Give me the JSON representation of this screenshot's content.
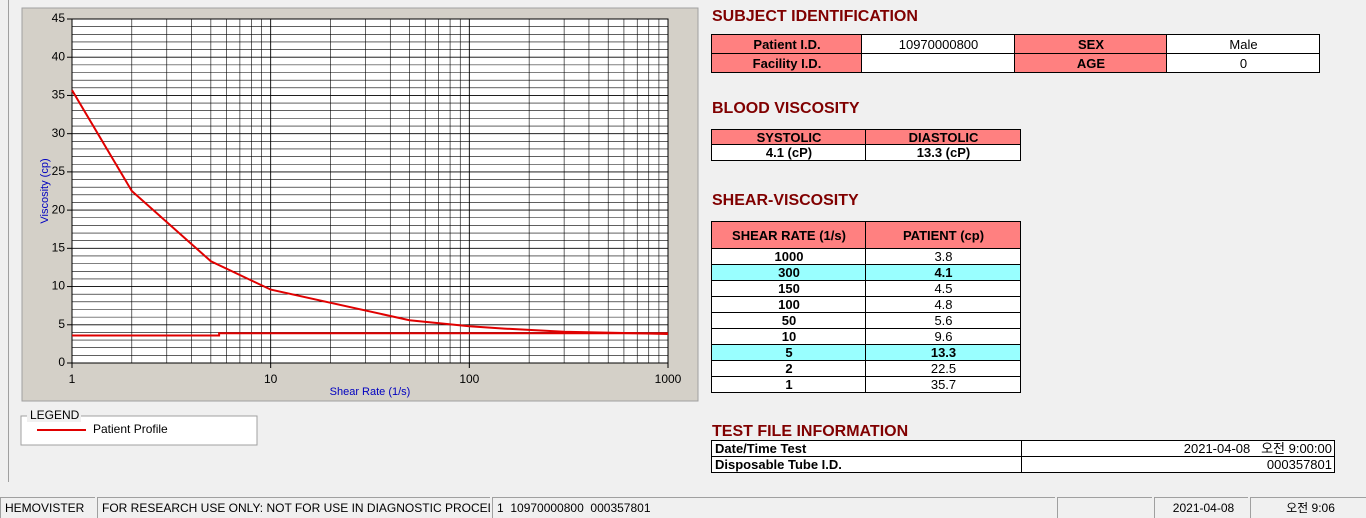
{
  "chart_data": {
    "type": "line",
    "xlabel": "Shear Rate (1/s)",
    "ylabel": "Viscosity (cp)",
    "xscale": "log",
    "xlim": [
      1,
      1000
    ],
    "xticks": [
      1,
      10,
      100,
      1000
    ],
    "xminor": [
      2,
      3,
      4,
      5,
      6,
      7,
      8,
      9,
      20,
      30,
      40,
      50,
      60,
      70,
      80,
      90,
      200,
      300,
      400,
      500,
      600,
      700,
      800,
      900
    ],
    "ylim": [
      0,
      45
    ],
    "yticks": [
      0,
      5,
      10,
      15,
      20,
      25,
      30,
      35,
      40,
      45
    ],
    "yminor": [
      1,
      2,
      3,
      4,
      6,
      7,
      8,
      9,
      11,
      12,
      13,
      14,
      16,
      17,
      18,
      19,
      21,
      22,
      23,
      24,
      26,
      27,
      28,
      29,
      31,
      32,
      33,
      34,
      36,
      37,
      38,
      39,
      41,
      42,
      43,
      44
    ],
    "grid": true,
    "legend_title": "LEGEND",
    "series": [
      {
        "name": "Patient Profile",
        "color": "#e00000",
        "x": [
          1,
          2,
          5,
          10,
          50,
          100,
          150,
          300,
          1000
        ],
        "values": [
          35.7,
          22.5,
          13.3,
          9.6,
          5.6,
          4.8,
          4.5,
          4.1,
          3.8
        ]
      },
      {
        "color": "#e00000",
        "x": [
          1,
          5.5,
          5.5,
          1000
        ],
        "values": [
          3.6,
          3.6,
          3.9,
          3.9
        ]
      }
    ]
  },
  "subject": {
    "title": "SUBJECT IDENTIFICATION",
    "rows": [
      [
        "Patient I.D.",
        "10970000800",
        "SEX",
        "Male"
      ],
      [
        "Facility I.D.",
        null,
        "AGE",
        "0"
      ]
    ]
  },
  "blood": {
    "title": "BLOOD VISCOSITY",
    "header": [
      "SYSTOLIC",
      "DIASTOLIC"
    ],
    "values": [
      "4.1 (cP)",
      "13.3 (cP)"
    ]
  },
  "shear": {
    "title": "SHEAR-VISCOSITY",
    "header": [
      "SHEAR RATE (1/s)",
      "PATIENT (cp)"
    ],
    "rows": [
      {
        "cells": [
          "1000",
          "3.8"
        ]
      },
      {
        "cells": [
          "300",
          "4.1"
        ],
        "highlight": true
      },
      {
        "cells": [
          "150",
          "4.5"
        ]
      },
      {
        "cells": [
          "100",
          "4.8"
        ]
      },
      {
        "cells": [
          "50",
          "5.6"
        ]
      },
      {
        "cells": [
          "10",
          "9.6"
        ]
      },
      {
        "cells": [
          "5",
          "13.3"
        ],
        "highlight": true
      },
      {
        "cells": [
          "2",
          "22.5"
        ]
      },
      {
        "cells": [
          "1",
          "35.7"
        ]
      }
    ]
  },
  "test_file": {
    "title": "TEST FILE INFORMATION",
    "rows": [
      [
        "Date/Time Test",
        "2021-04-08   오전 9:00:00"
      ],
      [
        "Disposable Tube I.D.",
        "000357801"
      ]
    ]
  },
  "status": [
    "HEMOVISTER",
    "FOR RESEARCH USE ONLY: NOT FOR USE IN DIAGNOSTIC PROCEDURES",
    "1  10970000800  000357801",
    null,
    "2021-04-08",
    "오전 9:06"
  ]
}
